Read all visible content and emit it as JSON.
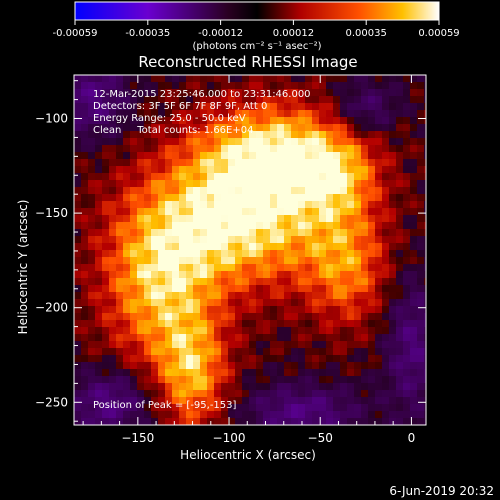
{
  "chart_data": {
    "type": "heatmap",
    "title": "Reconstructed RHESSI Image",
    "colorbar": {
      "ticks": [
        "-0.00059",
        "-0.00035",
        "-0.00012",
        "0.00012",
        "0.00035",
        "0.00059"
      ],
      "range": [
        -0.00059,
        0.00059
      ],
      "unit_label": "(photons cm⁻² s⁻¹ asec⁻²)"
    },
    "xlabel": "Heliocentric X (arcsec)",
    "ylabel": "Heliocentric Y (arcsec)",
    "xlim": [
      -185,
      8
    ],
    "ylim": [
      -262,
      -77
    ],
    "xticks": [
      -150,
      -100,
      -50,
      0
    ],
    "yticks": [
      -100,
      -150,
      -200,
      -250
    ],
    "annotations": [
      "12-Mar-2015 23:25:46.000 to 23:31:46.000",
      "Detectors: 3F 5F 6F 7F 8F 9F, Att 0",
      "Energy Range: 25.0 - 50.0 keV",
      "Clean     Total counts: 1.66E+04"
    ],
    "peak_label": "Position of Peak = [-95,-153]",
    "peak": {
      "x": -95,
      "y": -153
    },
    "emission_blobs": [
      {
        "x": -95,
        "y": -153,
        "sx": 38,
        "sy": 26,
        "amp": 1.0
      },
      {
        "x": -75,
        "y": -115,
        "sx": 30,
        "sy": 18,
        "amp": 0.75
      },
      {
        "x": -140,
        "y": -190,
        "sx": 22,
        "sy": 30,
        "amp": 0.7
      },
      {
        "x": -120,
        "y": -235,
        "sx": 14,
        "sy": 22,
        "amp": 0.7
      },
      {
        "x": -35,
        "y": -180,
        "sx": 16,
        "sy": 22,
        "amp": 0.55
      },
      {
        "x": -40,
        "y": -130,
        "sx": 16,
        "sy": 16,
        "amp": 0.5
      }
    ],
    "negative_blobs": [
      {
        "x": -175,
        "y": -90,
        "sx": 14,
        "sy": 14,
        "amp": 0.55
      },
      {
        "x": -25,
        "y": -95,
        "sx": 12,
        "sy": 10,
        "amp": 0.45
      },
      {
        "x": 0,
        "y": -220,
        "sx": 10,
        "sy": 26,
        "amp": 0.5
      },
      {
        "x": -165,
        "y": -250,
        "sx": 16,
        "sy": 12,
        "amp": 0.6
      },
      {
        "x": -60,
        "y": -255,
        "sx": 22,
        "sy": 10,
        "amp": 0.55
      }
    ]
  },
  "footer_date": "6-Jun-2019 20:32"
}
